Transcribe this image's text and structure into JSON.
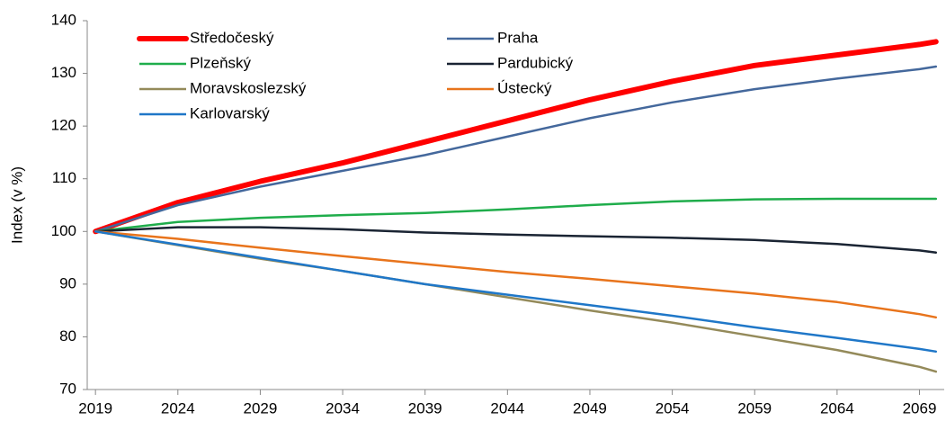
{
  "chart_data": {
    "type": "line",
    "y_label": "Index (v %)",
    "x": [
      2019,
      2024,
      2029,
      2034,
      2039,
      2044,
      2049,
      2054,
      2059,
      2064,
      2069,
      2070
    ],
    "xlim": [
      2018.5,
      2070.5
    ],
    "xticks": [
      2019,
      2024,
      2029,
      2034,
      2039,
      2044,
      2049,
      2054,
      2059,
      2064,
      2069
    ],
    "ylim": [
      70,
      140
    ],
    "yticks": [
      70,
      80,
      90,
      100,
      110,
      120,
      130,
      140
    ],
    "grid": false,
    "legend": "upper left",
    "series": [
      {
        "name": "Středočeský",
        "color": "#ff0000",
        "values": [
          100,
          105.5,
          109.5,
          113,
          117,
          121,
          125,
          128.5,
          131.5,
          133.5,
          135.5,
          136
        ]
      },
      {
        "name": "Praha",
        "color": "#44689c",
        "values": [
          100,
          105,
          108.5,
          111.5,
          114.5,
          118,
          121.5,
          124.5,
          127,
          129,
          130.8,
          131.3
        ]
      },
      {
        "name": "Plzeňský",
        "color": "#1fad4b",
        "values": [
          100,
          101.8,
          102.6,
          103.1,
          103.5,
          104.2,
          105,
          105.7,
          106.1,
          106.2,
          106.2,
          106.2
        ]
      },
      {
        "name": "Pardubický",
        "color": "#1a2433",
        "values": [
          100,
          100.8,
          100.8,
          100.4,
          99.8,
          99.4,
          99.1,
          98.8,
          98.4,
          97.6,
          96.4,
          96
        ]
      },
      {
        "name": "Moravskoslezský",
        "color": "#948a5a",
        "values": [
          100,
          97.4,
          94.8,
          92.5,
          90,
          87.5,
          85,
          82.7,
          80.1,
          77.5,
          74.3,
          73.4
        ]
      },
      {
        "name": "Ústecký",
        "color": "#e8741c",
        "values": [
          100,
          98.6,
          96.9,
          95.3,
          93.8,
          92.3,
          91,
          89.6,
          88.2,
          86.6,
          84.3,
          83.7
        ]
      },
      {
        "name": "Karlovarský",
        "color": "#1f77c8",
        "values": [
          100,
          97.5,
          95,
          92.5,
          90,
          88,
          86,
          84,
          81.8,
          79.8,
          77.7,
          77.2
        ]
      }
    ]
  }
}
